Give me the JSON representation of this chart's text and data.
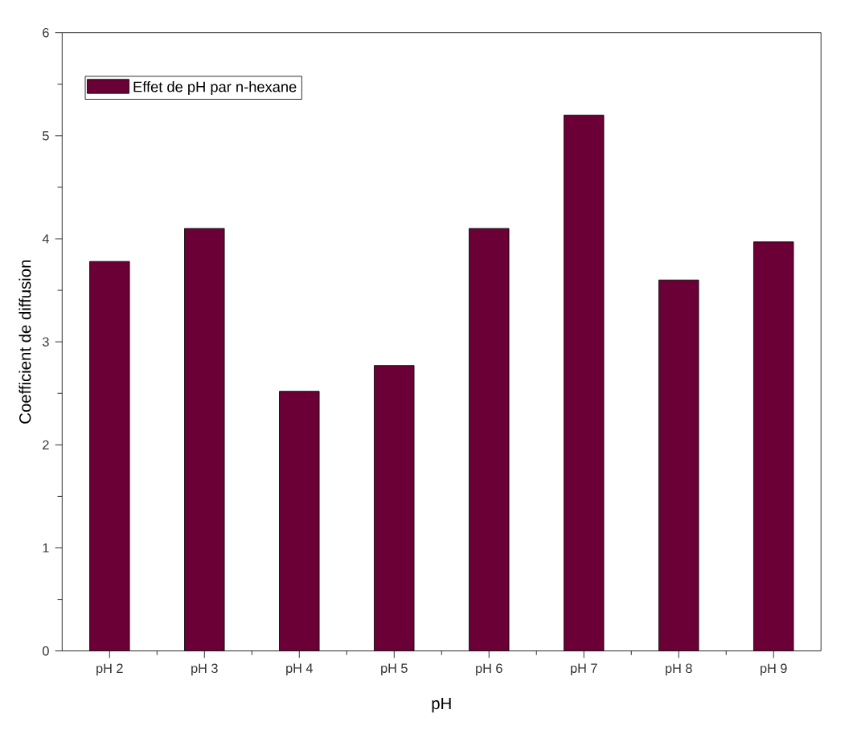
{
  "chart_data": {
    "type": "bar",
    "xlabel": "pH",
    "ylabel": "Coefficient de diffusion",
    "categories": [
      "pH 2",
      "pH 3",
      "pH 4",
      "pH 5",
      "pH 6",
      "pH 7",
      "pH 8",
      "pH 9"
    ],
    "series": [
      {
        "name": "Effet de pH par n-hexane",
        "color": "#6b0036",
        "values": [
          3.78,
          4.1,
          2.52,
          2.77,
          4.1,
          5.2,
          3.6,
          3.97
        ]
      }
    ],
    "ylim": [
      0,
      6
    ],
    "yticks": [
      0,
      1,
      2,
      3,
      4,
      5,
      6
    ],
    "legend": "top left",
    "grid": false
  }
}
